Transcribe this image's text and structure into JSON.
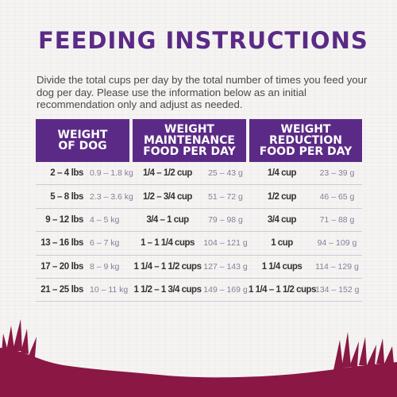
{
  "title": "FEEDING INSTRUCTIONS",
  "intro": "Divide the total cups per day by the total number of times you feed your dog per day. Please use the information below as an initial recommendation only and adjust as needed.",
  "table": {
    "headers": [
      [
        "WEIGHT",
        "OF DOG"
      ],
      [
        "WEIGHT",
        "MAINTENANCE",
        "FOOD PER DAY"
      ],
      [
        "WEIGHT",
        "REDUCTION",
        "FOOD PER DAY"
      ]
    ],
    "rows": [
      {
        "lbs": "2 – 4 lbs",
        "kg": "0.9 – 1.8 kg",
        "maint_cups": "1/4 – 1/2 cup",
        "maint_g": "25 – 43 g",
        "red_cups": "1/4 cup",
        "red_g": "23 – 39 g"
      },
      {
        "lbs": "5 – 8 lbs",
        "kg": "2.3 – 3.6 kg",
        "maint_cups": "1/2 – 3/4 cup",
        "maint_g": "51 – 72 g",
        "red_cups": "1/2 cup",
        "red_g": "46 – 65 g"
      },
      {
        "lbs": "9 – 12 lbs",
        "kg": "4 – 5 kg",
        "maint_cups": "3/4 – 1 cup",
        "maint_g": "79 – 98 g",
        "red_cups": "3/4 cup",
        "red_g": "71 – 88 g"
      },
      {
        "lbs": "13 – 16 lbs",
        "kg": "6 – 7 kg",
        "maint_cups": "1 – 1 1/4 cups",
        "maint_g": "104 – 121 g",
        "red_cups": "1 cup",
        "red_g": "94 – 109 g"
      },
      {
        "lbs": "17 – 20 lbs",
        "kg": "8 – 9 kg",
        "maint_cups": "1 1/4 – 1 1/2 cups",
        "maint_g": "127 – 143 g",
        "red_cups": "1 1/4 cups",
        "red_g": "114 – 129 g"
      },
      {
        "lbs": "21 – 25 lbs",
        "kg": "10 – 11 kg",
        "maint_cups": "1 1/2 – 1 3/4 cups",
        "maint_g": "149 – 169 g",
        "red_cups": "1 1/4 – 1 1/2 cups",
        "red_g": "134 – 152 g"
      }
    ]
  },
  "colors": {
    "purple": "#5b2a86",
    "grass": "#8a1744"
  }
}
